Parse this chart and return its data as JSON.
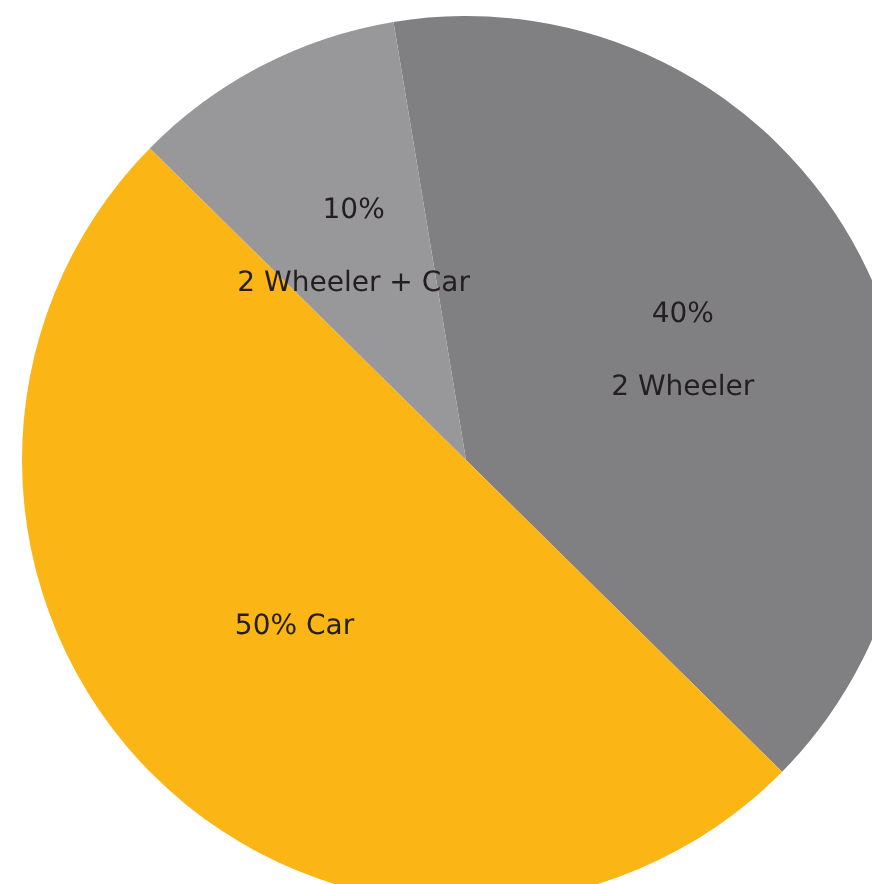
{
  "chart_data": {
    "type": "pie",
    "categories": [
      "2 Wheeler",
      "Car",
      "2 Wheeler + Car"
    ],
    "values": [
      40,
      50,
      10
    ],
    "value_labels": [
      "40%",
      "50%",
      "10%"
    ],
    "colors": [
      "#808083",
      "#fbb514",
      "#98989b"
    ]
  }
}
